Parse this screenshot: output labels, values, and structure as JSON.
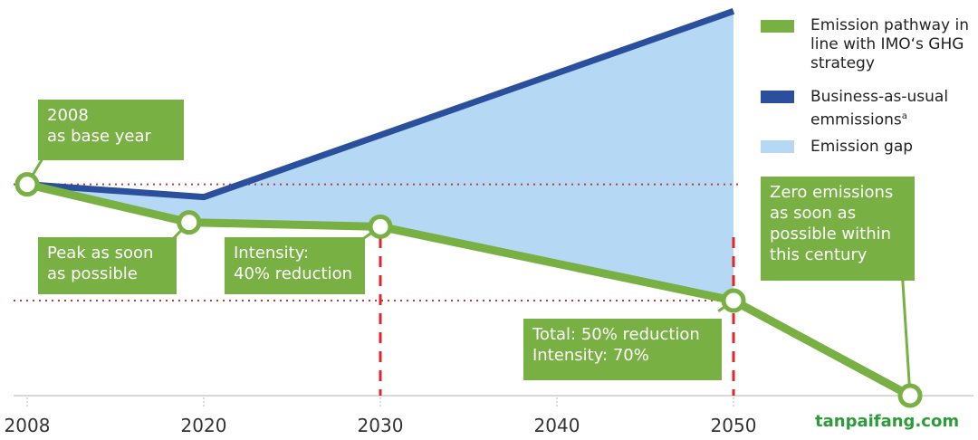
{
  "chart_data": {
    "type": "line",
    "x_axis_ticks": [
      2008,
      2020,
      2030,
      2040,
      2050
    ],
    "series": [
      {
        "name": "Emission pathway in line with IMO‘s GHG strategy",
        "color": "#78b043",
        "x": [
          2008,
          2019,
          2030,
          2050,
          2060
        ],
        "values": [
          100,
          82,
          80,
          45,
          0
        ]
      },
      {
        "name": "Business-as-usual emmissions",
        "color": "#2a4f9c",
        "x": [
          2008,
          2020,
          2050
        ],
        "values": [
          100,
          94,
          182
        ]
      }
    ],
    "gap": {
      "name": "Emission gap",
      "color": "#b5d9f5"
    },
    "footnote_marker": "a",
    "ylim": [
      0,
      186
    ],
    "annotations": [
      {
        "lines": [
          "2008",
          "as base year"
        ]
      },
      {
        "lines": [
          "Peak as soon",
          "as possible"
        ]
      },
      {
        "lines": [
          "Intensity:",
          "40% reduction"
        ]
      },
      {
        "lines": [
          "Total: 50% reduction",
          "Intensity: 70%"
        ]
      },
      {
        "lines": [
          "Zero emissions",
          "as soon as",
          "possible within",
          "this century"
        ]
      }
    ],
    "watermark": "tanpaifang.com"
  }
}
